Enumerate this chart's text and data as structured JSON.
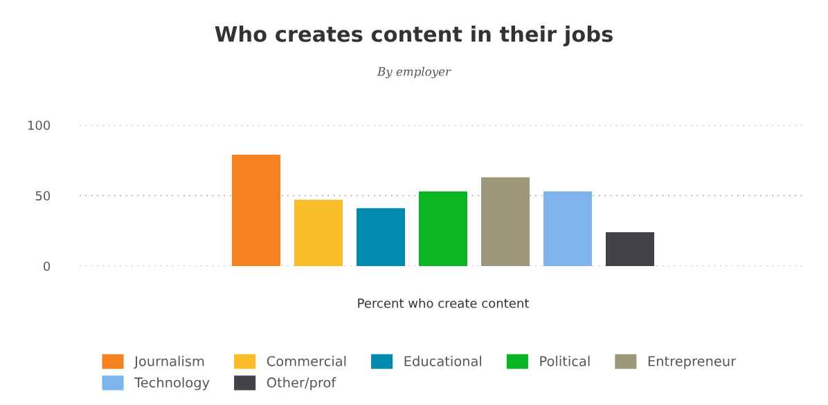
{
  "chart_data": {
    "type": "bar",
    "title": "Who creates content in their jobs",
    "subtitle": "By employer",
    "xlabel": "Percent who create content",
    "categories": [
      null
    ],
    "series": [
      {
        "name": "Journalism",
        "color": "#f58220",
        "values": [
          79
        ]
      },
      {
        "name": "Commercial",
        "color": "#fbbc2b",
        "values": [
          47
        ]
      },
      {
        "name": "Educational",
        "color": "#008aad",
        "values": [
          41
        ]
      },
      {
        "name": "Political",
        "color": "#09b523",
        "values": [
          53
        ]
      },
      {
        "name": "Entrepreneur",
        "color": "#9e977b",
        "values": [
          63
        ]
      },
      {
        "name": "Technology",
        "color": "#7db4eb",
        "values": [
          53
        ]
      },
      {
        "name": "Other/prof",
        "color": "#434247",
        "values": [
          24
        ]
      }
    ],
    "ylim": [
      0,
      100
    ],
    "yticks": [
      0,
      50,
      100
    ],
    "grid": "y",
    "legend": "bottom"
  }
}
